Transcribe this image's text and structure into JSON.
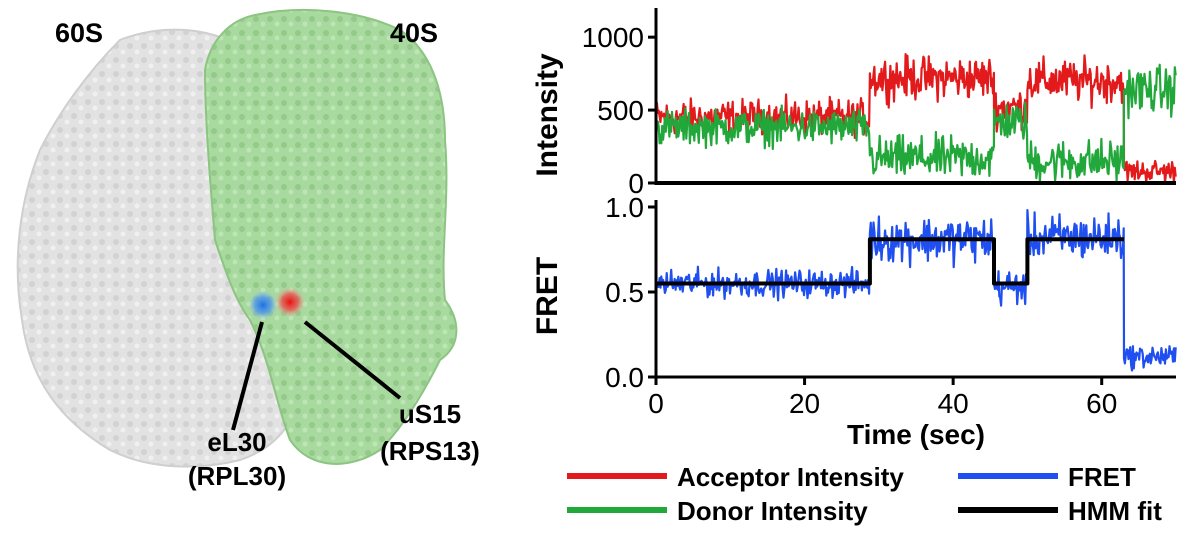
{
  "structure_panel": {
    "subunit_large": "60S",
    "subunit_small": "40S",
    "donor_site": {
      "label": "eL30",
      "sub": "(RPL30)",
      "color": "#2f7fe0"
    },
    "acceptor_site": {
      "label": "uS15",
      "sub": "(RPS13)",
      "color": "#e21b1b"
    },
    "colors": {
      "large_subunit": "#e3e3e3",
      "small_subunit": "#a9d9a0"
    }
  },
  "legend": [
    {
      "label": "Acceptor Intensity",
      "color": "#e31a1c"
    },
    {
      "label": "Donor Intensity",
      "color": "#22a83a"
    },
    {
      "label": "FRET",
      "color": "#1f4ff0"
    },
    {
      "label": "HMM fit",
      "color": "#000000"
    }
  ],
  "chart_data": [
    {
      "type": "line",
      "title": "",
      "xlabel": "",
      "ylabel": "Intensity",
      "xlim": [
        0,
        70
      ],
      "ylim": [
        0,
        1200
      ],
      "xticks": [],
      "yticks": [
        0,
        500,
        1000
      ],
      "series": [
        {
          "name": "Acceptor Intensity",
          "color": "#e31a1c",
          "segments": [
            {
              "t0": 0,
              "t1": 28.8,
              "mean": 450,
              "noise": 90
            },
            {
              "t0": 28.8,
              "t1": 45.5,
              "mean": 720,
              "noise": 110
            },
            {
              "t0": 45.5,
              "t1": 50,
              "mean": 520,
              "noise": 100
            },
            {
              "t0": 50,
              "t1": 63,
              "mean": 700,
              "noise": 110
            },
            {
              "t0": 63,
              "t1": 70,
              "mean": 80,
              "noise": 60
            }
          ]
        },
        {
          "name": "Donor Intensity",
          "color": "#22a83a",
          "segments": [
            {
              "t0": 0,
              "t1": 28.8,
              "mean": 380,
              "noise": 90
            },
            {
              "t0": 28.8,
              "t1": 45.5,
              "mean": 170,
              "noise": 110
            },
            {
              "t0": 45.5,
              "t1": 50,
              "mean": 420,
              "noise": 100
            },
            {
              "t0": 50,
              "t1": 63,
              "mean": 150,
              "noise": 110
            },
            {
              "t0": 63,
              "t1": 70,
              "mean": 640,
              "noise": 120
            }
          ]
        }
      ]
    },
    {
      "type": "line",
      "title": "",
      "xlabel": "Time (sec)",
      "ylabel": "FRET",
      "xlim": [
        0,
        70
      ],
      "ylim": [
        0,
        1.1
      ],
      "xticks": [
        0,
        20,
        40,
        60
      ],
      "yticks": [
        0.0,
        0.5,
        1.0
      ],
      "ytick_labels": [
        "0.0",
        "0.5",
        "1.0"
      ],
      "series": [
        {
          "name": "FRET",
          "color": "#1f4ff0",
          "segments": [
            {
              "t0": 0,
              "t1": 28.8,
              "mean": 0.55,
              "noise": 0.06
            },
            {
              "t0": 28.8,
              "t1": 45.5,
              "mean": 0.81,
              "noise": 0.1
            },
            {
              "t0": 45.5,
              "t1": 50,
              "mean": 0.53,
              "noise": 0.08
            },
            {
              "t0": 50,
              "t1": 63,
              "mean": 0.82,
              "noise": 0.1
            },
            {
              "t0": 63,
              "t1": 70,
              "mean": 0.12,
              "noise": 0.05
            }
          ]
        },
        {
          "name": "HMM fit",
          "color": "#000000",
          "x": [
            0,
            28.8,
            28.8,
            45.5,
            45.5,
            50,
            50,
            63
          ],
          "y": [
            0.55,
            0.55,
            0.81,
            0.81,
            0.55,
            0.55,
            0.81,
            0.81
          ]
        }
      ]
    }
  ]
}
